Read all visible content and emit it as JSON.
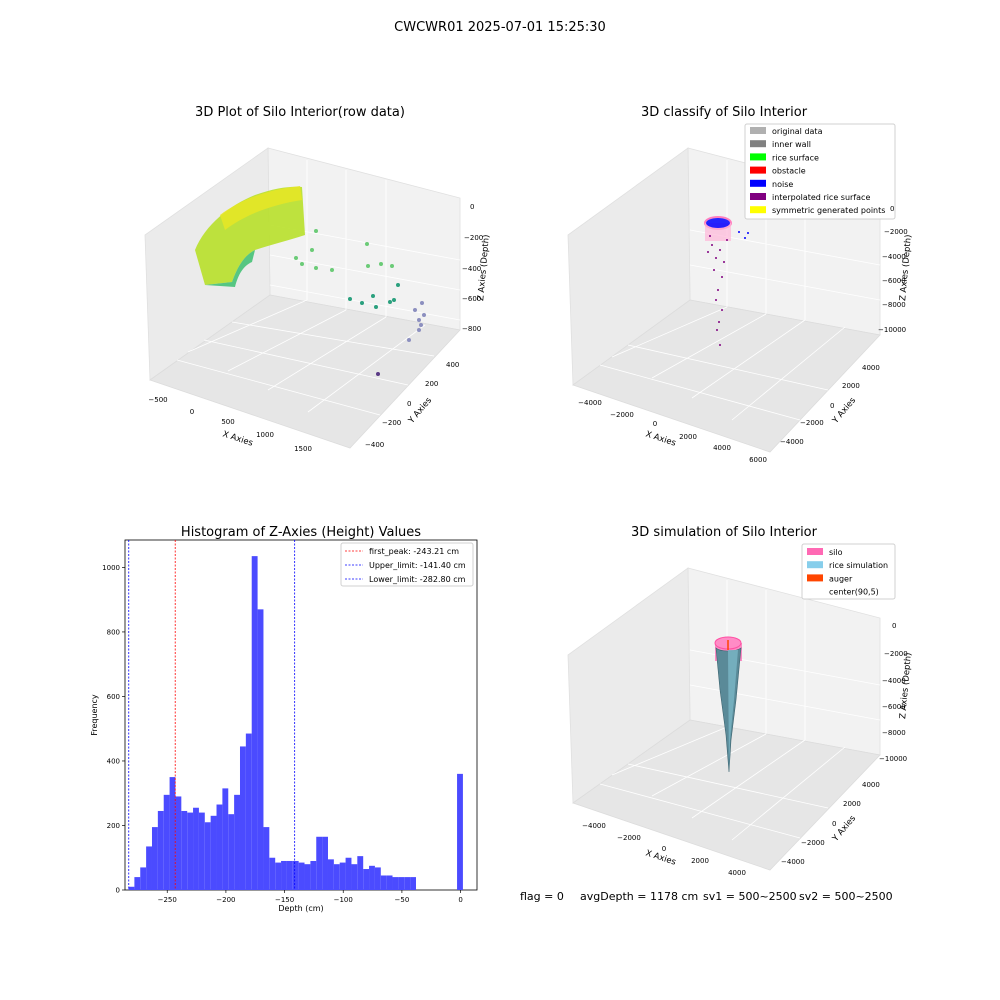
{
  "figure_title": "CWCWR01 2025-07-01 15:25:30",
  "panels": {
    "raw": {
      "title": "3D Plot of Silo Interior(row data)",
      "xlabel": "X Axies",
      "ylabel": "Y Axies",
      "zlabel": "Z Axies (Depth)",
      "xticks": [
        "−500",
        "0",
        "500",
        "1000",
        "1500"
      ],
      "yticks": [
        "400",
        "200",
        "0",
        "−200",
        "−400"
      ],
      "zticks": [
        "0",
        "−200",
        "−400",
        "−600",
        "−800"
      ]
    },
    "classify": {
      "title": "3D classify of Silo Interior",
      "xlabel": "X Axies",
      "ylabel": "Y Axies",
      "zlabel": "Z Axies (Depth)",
      "xticks": [
        "−4000",
        "−2000",
        "0",
        "2000",
        "4000",
        "6000"
      ],
      "yticks": [
        "4000",
        "2000",
        "0",
        "−2000",
        "−4000"
      ],
      "zticks": [
        "0",
        "−2000",
        "−4000",
        "−6000",
        "−8000",
        "−10000"
      ],
      "legend": [
        {
          "label": "original data",
          "color": "#b0b0b0"
        },
        {
          "label": "inner wall",
          "color": "#808080"
        },
        {
          "label": "rice surface",
          "color": "#00ff00"
        },
        {
          "label": "obstacle",
          "color": "#ff0000"
        },
        {
          "label": "noise",
          "color": "#0000ff"
        },
        {
          "label": "interpolated rice surface",
          "color": "#800080"
        },
        {
          "label": "symmetric generated points",
          "color": "#ffff00"
        }
      ]
    },
    "simulation": {
      "title": "3D simulation of Silo Interior",
      "xlabel": "X Axies",
      "ylabel": "Y Axies",
      "zlabel": "Z Axies (Depth)",
      "xticks": [
        "−4000",
        "−2000",
        "0",
        "2000",
        "4000"
      ],
      "yticks": [
        "4000",
        "2000",
        "0",
        "−2000",
        "−4000"
      ],
      "zticks": [
        "0",
        "−2000",
        "−4000",
        "−6000",
        "−8000",
        "−10000"
      ],
      "legend": [
        {
          "label": "silo",
          "color": "#ff69b4"
        },
        {
          "label": "rice simulation",
          "color": "#87ceeb"
        },
        {
          "label": "auger",
          "color": "#ff4500"
        },
        {
          "label": "center(90,5)",
          "color": ""
        }
      ]
    },
    "status": {
      "flag": "flag = 0",
      "avg_depth": "avgDepth = 1178 cm",
      "sv1": "sv1 = 500~2500",
      "sv2": "sv2 = 500~2500"
    }
  },
  "chart_data": {
    "type": "bar",
    "title": "Histogram of Z-Axies (Height) Values",
    "xlabel": "Depth (cm)",
    "ylabel": "Frequency",
    "xlim": [
      -286,
      14
    ],
    "ylim": [
      0,
      1085
    ],
    "xticks": [
      -250,
      -200,
      -150,
      -100,
      -50,
      0
    ],
    "xtick_labels": [
      "−250",
      "−200",
      "−150",
      "−100",
      "−50",
      "0"
    ],
    "yticks": [
      0,
      200,
      400,
      600,
      800,
      1000
    ],
    "bin_width": 5,
    "bins": [
      {
        "x0": -283,
        "value": 10
      },
      {
        "x0": -278,
        "value": 40
      },
      {
        "x0": -273,
        "value": 70
      },
      {
        "x0": -268,
        "value": 135
      },
      {
        "x0": -263,
        "value": 195
      },
      {
        "x0": -258,
        "value": 245
      },
      {
        "x0": -253,
        "value": 295
      },
      {
        "x0": -248,
        "value": 350
      },
      {
        "x0": -243,
        "value": 290
      },
      {
        "x0": -238,
        "value": 245
      },
      {
        "x0": -233,
        "value": 240
      },
      {
        "x0": -228,
        "value": 255
      },
      {
        "x0": -223,
        "value": 240
      },
      {
        "x0": -218,
        "value": 210
      },
      {
        "x0": -213,
        "value": 230
      },
      {
        "x0": -208,
        "value": 265
      },
      {
        "x0": -203,
        "value": 315
      },
      {
        "x0": -198,
        "value": 235
      },
      {
        "x0": -193,
        "value": 295
      },
      {
        "x0": -188,
        "value": 445
      },
      {
        "x0": -183,
        "value": 485
      },
      {
        "x0": -178,
        "value": 1035
      },
      {
        "x0": -173,
        "value": 870
      },
      {
        "x0": -168,
        "value": 195
      },
      {
        "x0": -163,
        "value": 100
      },
      {
        "x0": -158,
        "value": 85
      },
      {
        "x0": -153,
        "value": 90
      },
      {
        "x0": -148,
        "value": 90
      },
      {
        "x0": -143,
        "value": 90
      },
      {
        "x0": -138,
        "value": 85
      },
      {
        "x0": -133,
        "value": 80
      },
      {
        "x0": -128,
        "value": 90
      },
      {
        "x0": -123,
        "value": 165
      },
      {
        "x0": -118,
        "value": 165
      },
      {
        "x0": -113,
        "value": 95
      },
      {
        "x0": -108,
        "value": 80
      },
      {
        "x0": -103,
        "value": 85
      },
      {
        "x0": -98,
        "value": 100
      },
      {
        "x0": -93,
        "value": 80
      },
      {
        "x0": -88,
        "value": 105
      },
      {
        "x0": -83,
        "value": 65
      },
      {
        "x0": -78,
        "value": 75
      },
      {
        "x0": -73,
        "value": 70
      },
      {
        "x0": -68,
        "value": 45
      },
      {
        "x0": -63,
        "value": 45
      },
      {
        "x0": -58,
        "value": 40
      },
      {
        "x0": -53,
        "value": 40
      },
      {
        "x0": -48,
        "value": 40
      },
      {
        "x0": -43,
        "value": 40
      },
      {
        "x0": -38,
        "value": 0
      },
      {
        "x0": -3,
        "value": 360
      }
    ],
    "vlines": [
      {
        "label": "first_peak: -243.21 cm",
        "x": -243.21,
        "color": "#ff0000"
      },
      {
        "label": "Upper_limit: -141.40 cm",
        "x": -141.4,
        "color": "#0000ff"
      },
      {
        "label": "Lower_limit: -282.80 cm",
        "x": -282.8,
        "color": "#0000ff"
      }
    ],
    "bar_color": "#4b4bff"
  }
}
